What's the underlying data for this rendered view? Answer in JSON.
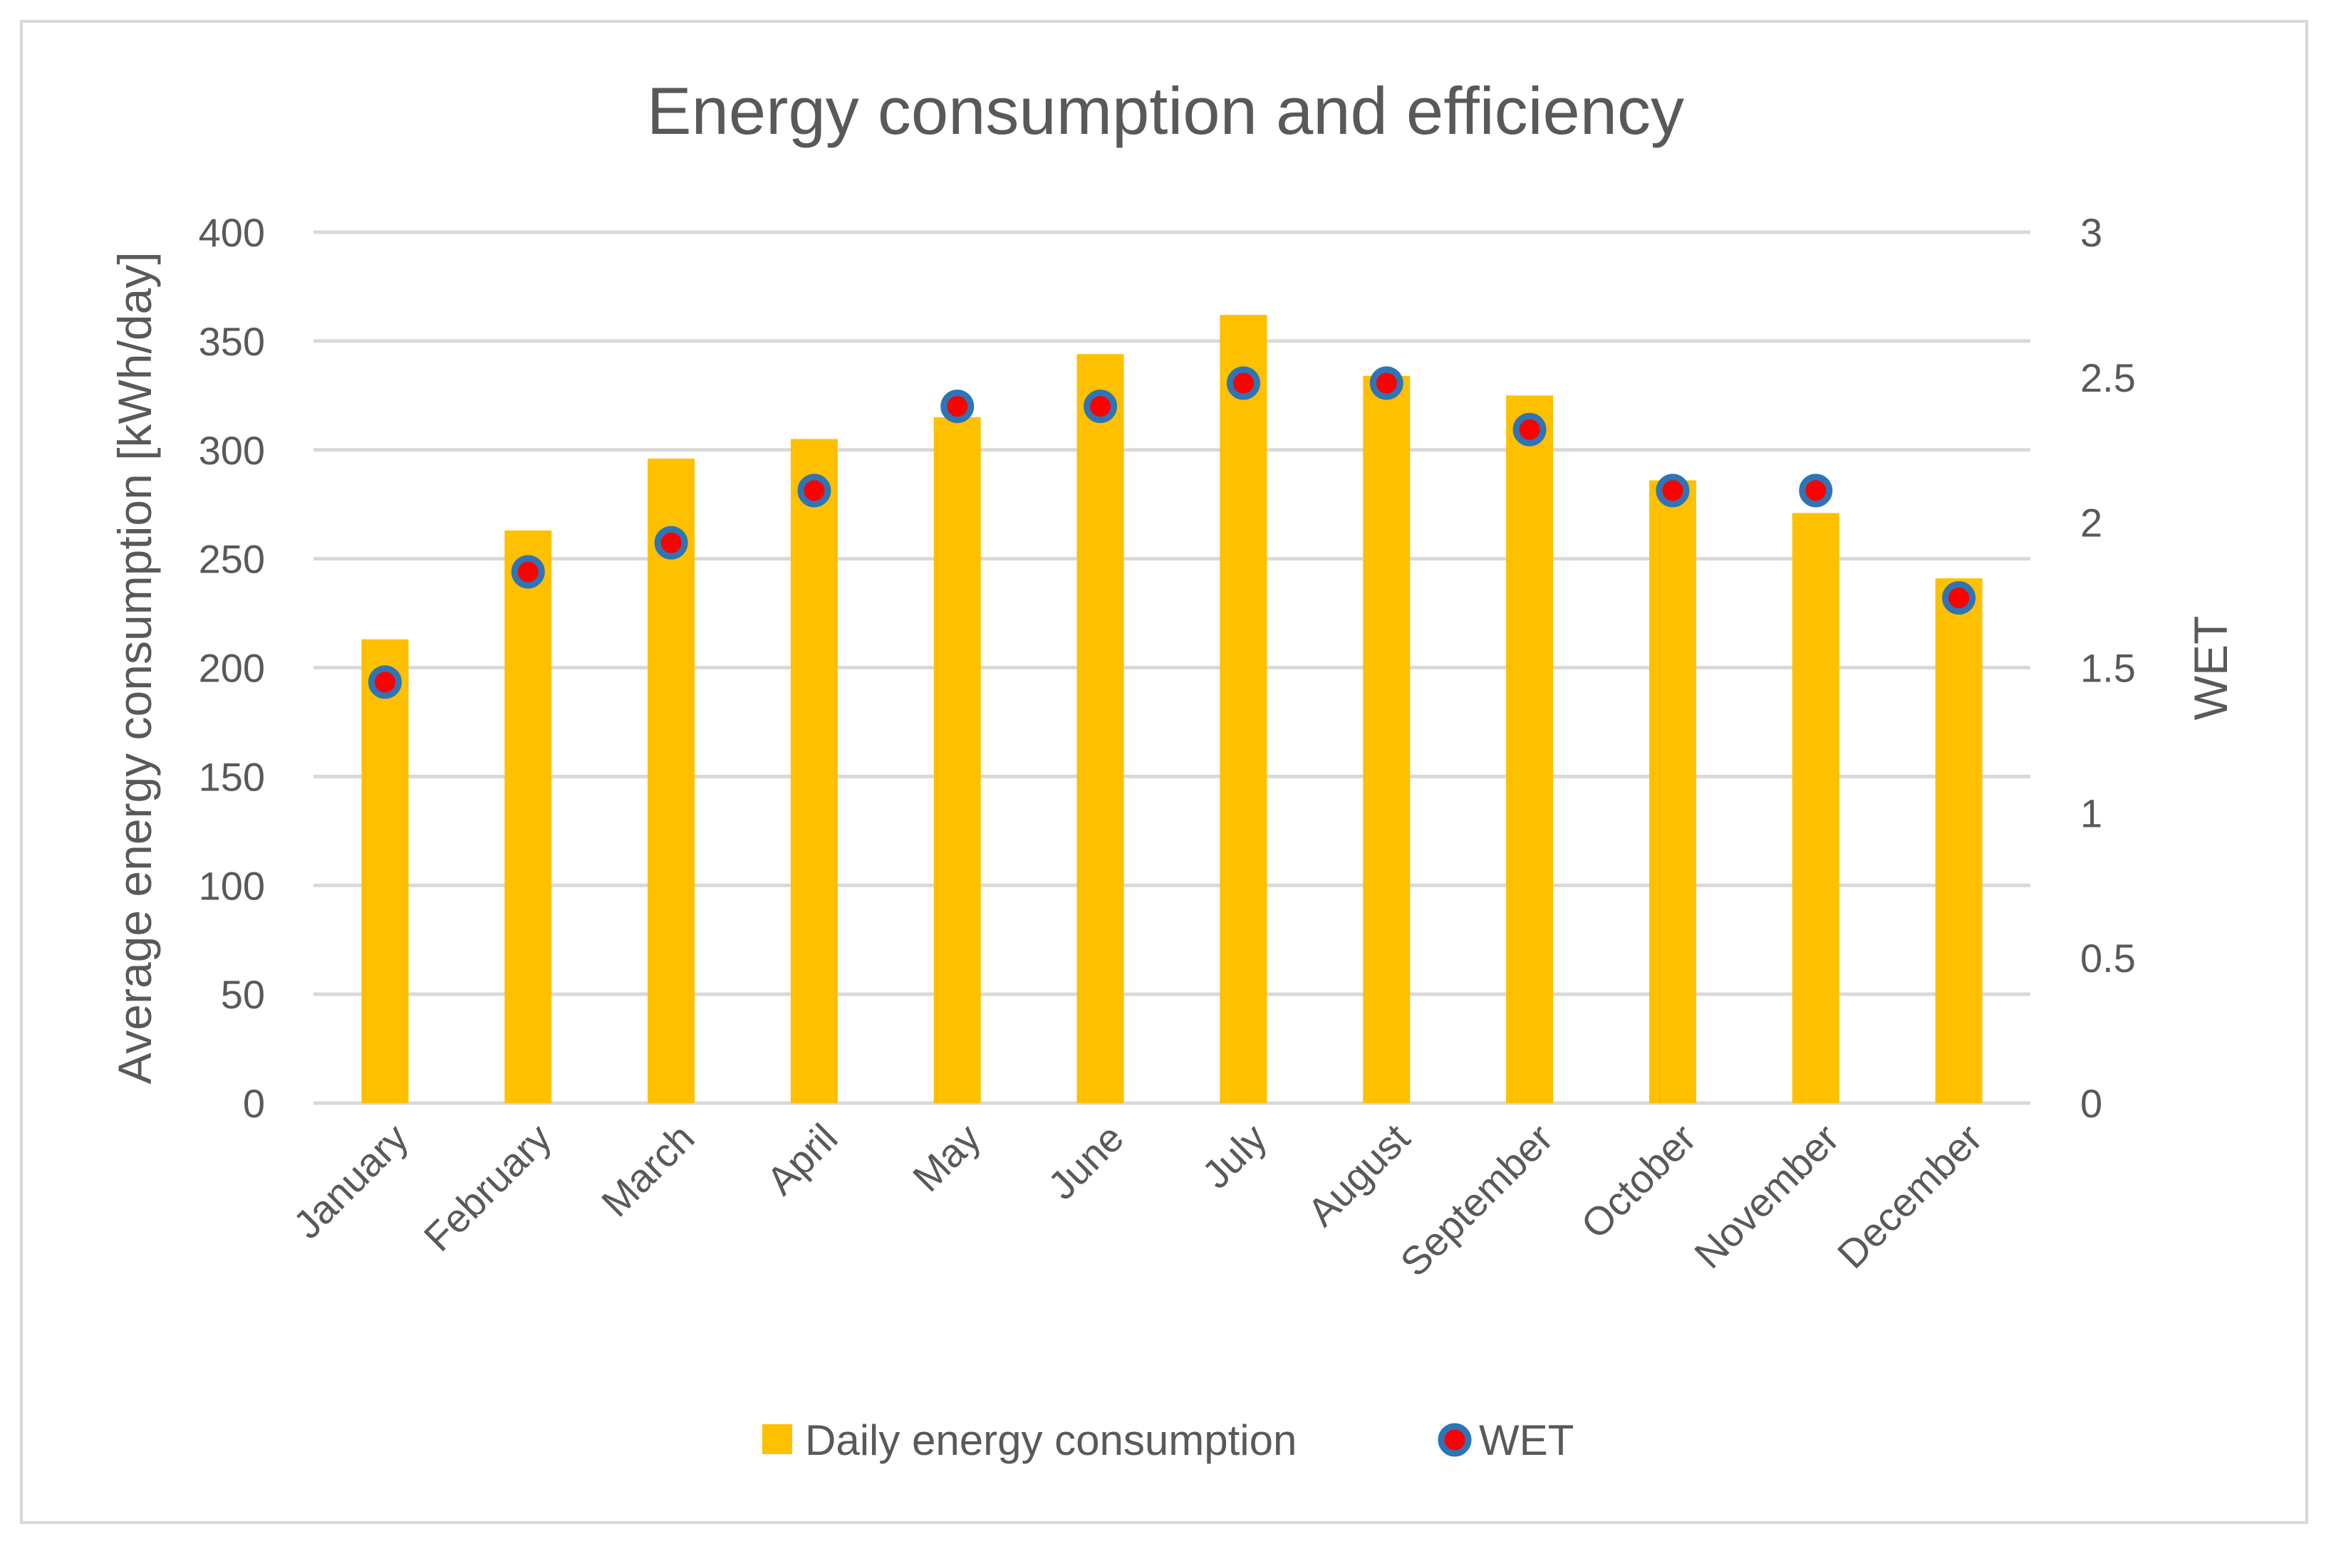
{
  "chart_data": {
    "type": "bar",
    "title": "Energy consumption and efficiency",
    "categories": [
      "January",
      "February",
      "March",
      "April",
      "May",
      "June",
      "July",
      "August",
      "September",
      "October",
      "November",
      "December"
    ],
    "series": [
      {
        "name": "Daily energy consumption",
        "type": "bar",
        "axis": "left",
        "color": "#FFC000",
        "values": [
          213,
          263,
          296,
          305,
          315,
          344,
          362,
          334,
          325,
          286,
          271,
          241
        ]
      },
      {
        "name": "WET",
        "type": "scatter",
        "axis": "right",
        "marker_fill": "#FF0000",
        "marker_edge": "#2E75B6",
        "values": [
          1.45,
          1.83,
          1.93,
          2.11,
          2.4,
          2.4,
          2.48,
          2.48,
          2.32,
          2.11,
          2.11,
          1.74
        ]
      }
    ],
    "ylabel": "Average energy consumption [kWh/day]",
    "y2label": "WET",
    "ylim": [
      0,
      400
    ],
    "y2lim": [
      0,
      3
    ],
    "yticks": [
      "0",
      "50",
      "100",
      "150",
      "200",
      "250",
      "300",
      "350",
      "400"
    ],
    "y2ticks": [
      "0",
      "0.5",
      "1",
      "1.5",
      "2",
      "2.5",
      "3"
    ],
    "grid": true,
    "legend": "bottom"
  }
}
